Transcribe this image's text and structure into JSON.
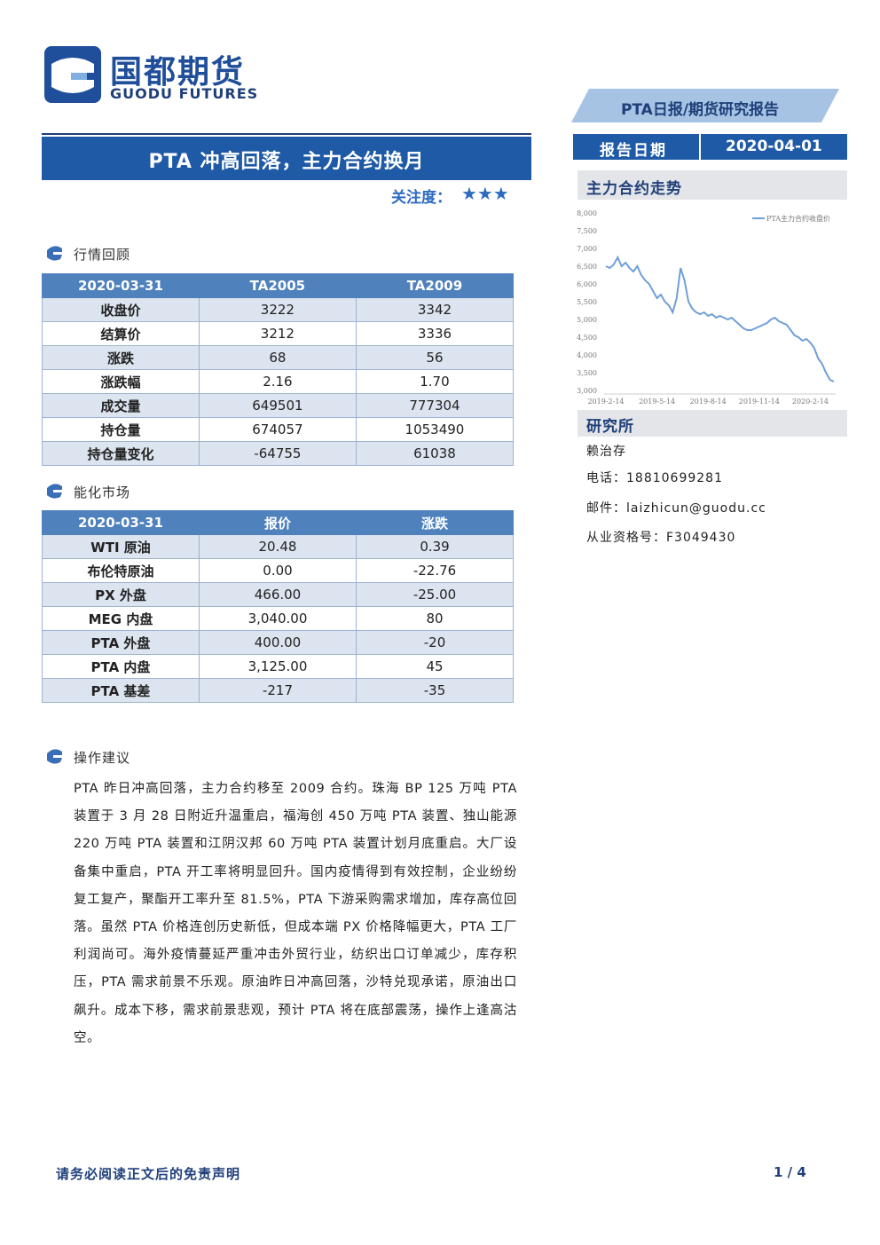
{
  "header": {
    "logo_cn": "国都期货",
    "logo_en": "GUODU FUTURES",
    "report_type": "PTA日报/期货研究报告",
    "date_label": "报告日期",
    "date": "2020-04-01"
  },
  "title": "PTA 冲高回落，主力合约换月",
  "attention": {
    "label": "关注度：",
    "stars": "★★★"
  },
  "market_review": {
    "heading": "行情回顾",
    "table": {
      "header": [
        "2020-03-31",
        "TA2005",
        "TA2009"
      ],
      "rows": [
        [
          "收盘价",
          "3222",
          "3342"
        ],
        [
          "结算价",
          "3212",
          "3336"
        ],
        [
          "涨跌",
          "68",
          "56"
        ],
        [
          "涨跌幅",
          "2.16",
          "1.70"
        ],
        [
          "成交量",
          "649501",
          "777304"
        ],
        [
          "持仓量",
          "674057",
          "1053490"
        ],
        [
          "持仓量变化",
          "-64755",
          "61038"
        ]
      ]
    }
  },
  "energy_market": {
    "heading": "能化市场",
    "table": {
      "header": [
        "2020-03-31",
        "报价",
        "涨跌"
      ],
      "rows": [
        [
          "WTI 原油",
          "20.48",
          "0.39"
        ],
        [
          "布伦特原油",
          "0.00",
          "-22.76"
        ],
        [
          "PX 外盘",
          "466.00",
          "-25.00"
        ],
        [
          "MEG 内盘",
          "3,040.00",
          "80"
        ],
        [
          "PTA 外盘",
          "400.00",
          "-20"
        ],
        [
          "PTA 内盘",
          "3,125.00",
          "45"
        ],
        [
          "PTA 基差",
          "-217",
          "-35"
        ]
      ]
    }
  },
  "advice": {
    "heading": "操作建议",
    "text": "PTA 昨日冲高回落，主力合约移至 2009 合约。珠海 BP 125 万吨 PTA 装置于 3 月 28 日附近升温重启，福海创 450 万吨 PTA 装置、独山能源 220 万吨 PTA 装置和江阴汉邦 60 万吨 PTA 装置计划月底重启。大厂设备集中重启，PTA 开工率将明显回升。国内疫情得到有效控制，企业纷纷复工复产，聚酯开工率升至 81.5%，PTA 下游采购需求增加，库存高位回落。虽然 PTA 价格连创历史新低，但成本端 PX 价格降幅更大，PTA 工厂利润尚可。海外疫情蔓延严重冲击外贸行业，纺织出口订单减少，库存积压，PTA 需求前景不乐观。原油昨日冲高回落，沙特兑现承诺，原油出口飙升。成本下移，需求前景悲观，预计 PTA 将在底部震荡，操作上逢高沽空。"
  },
  "chart_heading": "主力合约走势",
  "chart_data": {
    "type": "line",
    "categories": [
      "2019-2-14",
      null,
      null,
      null,
      null,
      null,
      null,
      null,
      null,
      null,
      null,
      null,
      null,
      "2019-5-14",
      null,
      null,
      null,
      null,
      null,
      null,
      null,
      null,
      null,
      null,
      null,
      null,
      "2019-8-14",
      null,
      null,
      null,
      null,
      null,
      null,
      null,
      null,
      null,
      null,
      null,
      null,
      "2019-11-14",
      null,
      null,
      null,
      null,
      null,
      null,
      null,
      null,
      null,
      null,
      null,
      null,
      "2020-2-14",
      null,
      null,
      null,
      null,
      null,
      null
    ],
    "series": [
      {
        "name": "PTA主力合约收盘价",
        "color": "#6f9fd8",
        "values": [
          6500,
          6450,
          6550,
          6750,
          6500,
          6600,
          6450,
          6350,
          6500,
          6250,
          6100,
          6000,
          5800,
          5600,
          5700,
          5500,
          5400,
          5200,
          5600,
          6450,
          6100,
          5500,
          5300,
          5200,
          5150,
          5200,
          5100,
          5150,
          5050,
          5100,
          5050,
          5000,
          5050,
          4950,
          4850,
          4750,
          4700,
          4700,
          4750,
          4800,
          4850,
          4900,
          5000,
          5050,
          4950,
          4900,
          4850,
          4700,
          4550,
          4500,
          4400,
          4450,
          4350,
          4200,
          3900,
          3750,
          3500,
          3300,
          3250
        ]
      }
    ],
    "ylim": [
      3000,
      8000
    ],
    "yticks": [
      {
        "value": 3000,
        "label": "3,000"
      },
      {
        "value": 3500,
        "label": "3,500"
      },
      {
        "value": 4000,
        "label": "4,000"
      },
      {
        "value": 4500,
        "label": "4,500"
      },
      {
        "value": 5000,
        "label": "5,000"
      },
      {
        "value": 5500,
        "label": "5,500"
      },
      {
        "value": 6000,
        "label": "6,000"
      },
      {
        "value": 6500,
        "label": "6,500"
      },
      {
        "value": 7000,
        "label": "7,000"
      },
      {
        "value": 7500,
        "label": "7,500"
      },
      {
        "value": 8000,
        "label": "8,000"
      }
    ],
    "legend": "top-right"
  },
  "research": {
    "heading": "研究所",
    "name": "赖治存",
    "phone": "电话：18810699281",
    "email": "邮件：laizhicun@guodu.cc",
    "license": "从业资格号：F3049430"
  },
  "footer": {
    "disclaimer": "请务必阅读正文后的免责声明",
    "page": "1 / 4"
  }
}
